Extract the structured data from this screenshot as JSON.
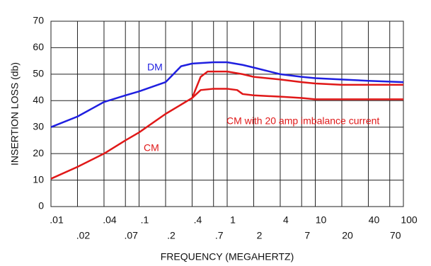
{
  "chart_data": {
    "type": "line",
    "xlabel": "FREQUENCY (MEGAHERTZ)",
    "ylabel": "INSERTION LOSS (db)",
    "xscale": "log",
    "grid": true,
    "xlim": [
      0.01,
      100
    ],
    "ylim": [
      0,
      70
    ],
    "xticks": [
      {
        "value": 0.01,
        "label": ".01"
      },
      {
        "value": 0.02,
        "label": ".02"
      },
      {
        "value": 0.04,
        "label": ".04"
      },
      {
        "value": 0.07,
        "label": ".07"
      },
      {
        "value": 0.1,
        "label": ".1"
      },
      {
        "value": 0.2,
        "label": ".2"
      },
      {
        "value": 0.4,
        "label": ".4"
      },
      {
        "value": 0.7,
        "label": ".7"
      },
      1,
      2,
      4,
      7,
      10,
      20,
      40,
      70,
      100
    ],
    "yticks": [
      0,
      10,
      20,
      30,
      40,
      50,
      60,
      70
    ],
    "series": [
      {
        "name": "DM",
        "color": "#1f1fe0",
        "x": [
          0.01,
          0.02,
          0.04,
          0.07,
          0.1,
          0.2,
          0.3,
          0.4,
          0.7,
          1,
          1.5,
          2,
          4,
          7,
          10,
          20,
          40,
          100
        ],
        "values": [
          30,
          34,
          39.5,
          42,
          43.5,
          47,
          53,
          54,
          54.5,
          54.5,
          53.5,
          52.5,
          50,
          49,
          48.5,
          48,
          47.5,
          47
        ]
      },
      {
        "name": "CM",
        "color": "#e01818",
        "x": [
          0.01,
          0.02,
          0.04,
          0.07,
          0.1,
          0.2,
          0.4,
          0.5,
          0.6,
          1,
          1.5,
          2,
          4,
          7,
          10,
          20,
          100
        ],
        "values": [
          10.5,
          15,
          20,
          25,
          28,
          35,
          41,
          49,
          51,
          51,
          50,
          49,
          48,
          47,
          46.5,
          46,
          46
        ]
      },
      {
        "name": "CM with 20 amp imbalance current",
        "color": "#e01818",
        "x": [
          0.4,
          0.5,
          0.7,
          1,
          1.3,
          1.5,
          2,
          4,
          7,
          10,
          100
        ],
        "values": [
          41,
          44,
          44.5,
          44.5,
          44,
          42.5,
          42,
          41.5,
          41,
          40.5,
          40.5
        ]
      }
    ]
  }
}
